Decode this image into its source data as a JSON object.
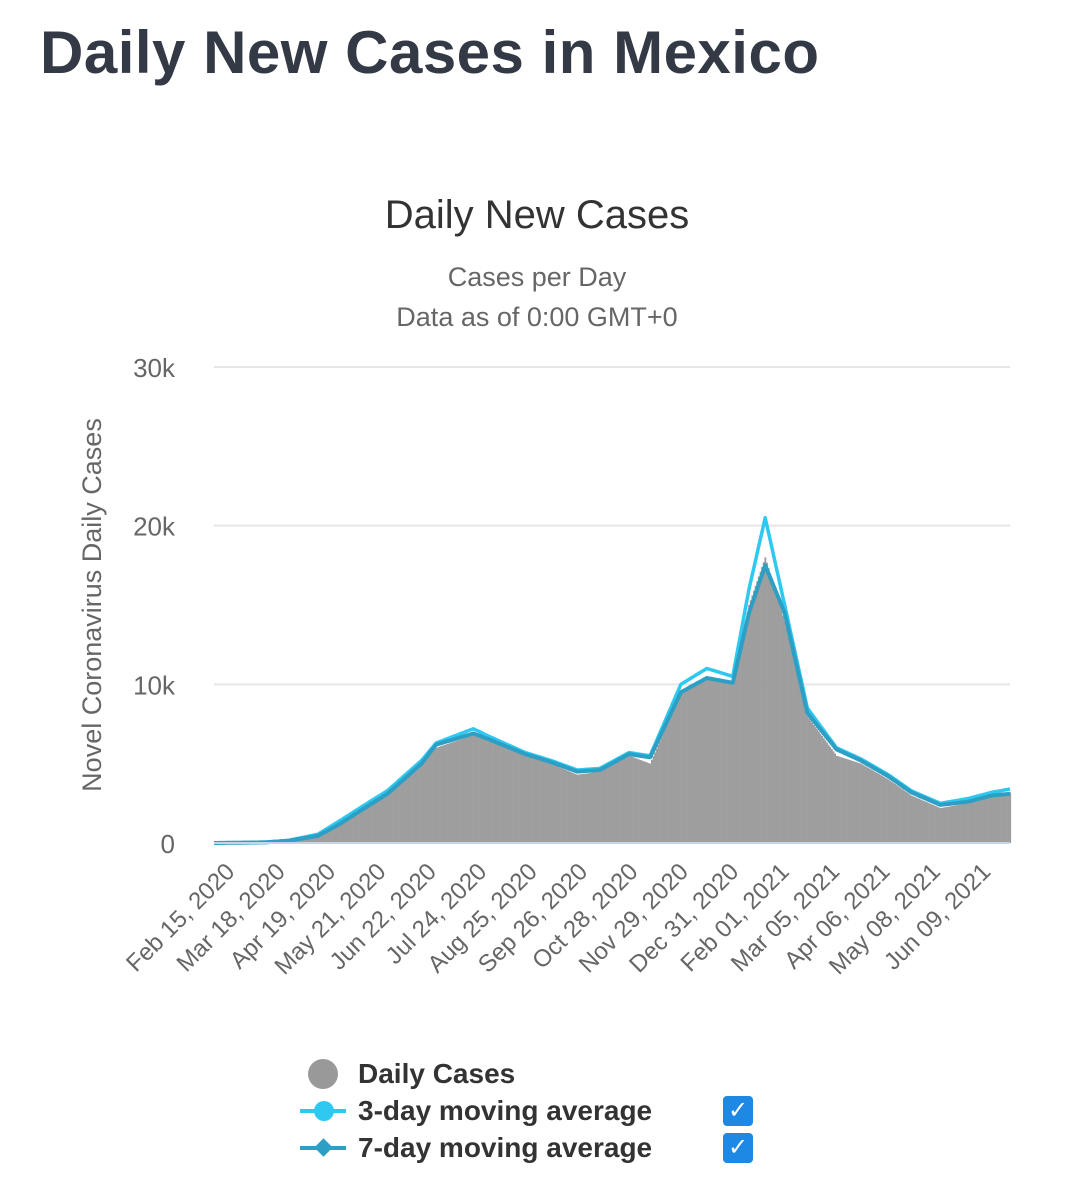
{
  "page": {
    "title": "Daily New Cases in Mexico"
  },
  "colors": {
    "daily": "#9e9e9e",
    "ma3": "#2fc8f0",
    "ma7": "#2e9fc4",
    "grid": "#e6e6e6",
    "checkbox": "#1e88e5"
  },
  "legend": {
    "items": [
      {
        "label": "Daily Cases",
        "checked": false
      },
      {
        "label": "3-day moving average",
        "checked": true
      },
      {
        "label": "7-day moving average",
        "checked": true
      }
    ]
  },
  "chart_data": {
    "type": "bar",
    "title": "Daily New Cases",
    "subtitle": [
      "Cases per Day",
      "Data as of 0:00 GMT+0"
    ],
    "ylabel": "Novel Coronavirus Daily Cases",
    "xlabel": "",
    "ylim": [
      0,
      30000
    ],
    "yticks": [
      0,
      10000,
      20000,
      30000
    ],
    "ytick_labels": [
      "0",
      "10k",
      "20k",
      "30k"
    ],
    "x_start": "2020-02-15",
    "x_end": "2021-06-20",
    "xtick_labels": [
      "Feb 15, 2020",
      "Mar 18, 2020",
      "Apr 19, 2020",
      "May 21, 2020",
      "Jun 22, 2020",
      "Jul 24, 2020",
      "Aug 25, 2020",
      "Sep 26, 2020",
      "Oct 28, 2020",
      "Nov 29, 2020",
      "Dec 31, 2020",
      "Feb 01, 2021",
      "Mar 05, 2021",
      "Apr 06, 2021",
      "May 08, 2021",
      "Jun 09, 2021"
    ],
    "grid": true,
    "legend_position": "bottom",
    "series": [
      {
        "name": "Daily Cases",
        "type": "bar",
        "points": [
          [
            "2020-02-15",
            0
          ],
          [
            "2020-03-18",
            50
          ],
          [
            "2020-04-01",
            150
          ],
          [
            "2020-04-19",
            500
          ],
          [
            "2020-05-01",
            1200
          ],
          [
            "2020-05-21",
            2500
          ],
          [
            "2020-06-01",
            3000
          ],
          [
            "2020-06-22",
            5000
          ],
          [
            "2020-07-01",
            6000
          ],
          [
            "2020-07-24",
            6800
          ],
          [
            "2020-08-01",
            6500
          ],
          [
            "2020-08-25",
            5500
          ],
          [
            "2020-09-10",
            5000
          ],
          [
            "2020-09-26",
            4300
          ],
          [
            "2020-10-10",
            4500
          ],
          [
            "2020-10-28",
            5500
          ],
          [
            "2020-11-10",
            5000
          ],
          [
            "2020-11-29",
            9500
          ],
          [
            "2020-12-15",
            10500
          ],
          [
            "2020-12-31",
            10000
          ],
          [
            "2021-01-10",
            15000
          ],
          [
            "2021-01-20",
            18000
          ],
          [
            "2021-02-01",
            14000
          ],
          [
            "2021-02-15",
            8000
          ],
          [
            "2021-03-05",
            5500
          ],
          [
            "2021-03-20",
            5000
          ],
          [
            "2021-04-06",
            4000
          ],
          [
            "2021-04-20",
            3000
          ],
          [
            "2021-05-08",
            2200
          ],
          [
            "2021-05-25",
            2500
          ],
          [
            "2021-06-09",
            3000
          ],
          [
            "2021-06-20",
            3200
          ]
        ]
      },
      {
        "name": "3-day moving average",
        "type": "line",
        "points": [
          [
            "2020-02-15",
            0
          ],
          [
            "2020-03-18",
            60
          ],
          [
            "2020-04-01",
            170
          ],
          [
            "2020-04-19",
            550
          ],
          [
            "2020-05-01",
            1300
          ],
          [
            "2020-05-21",
            2600
          ],
          [
            "2020-06-01",
            3300
          ],
          [
            "2020-06-22",
            5200
          ],
          [
            "2020-07-01",
            6300
          ],
          [
            "2020-07-24",
            7200
          ],
          [
            "2020-08-01",
            6800
          ],
          [
            "2020-08-25",
            5700
          ],
          [
            "2020-09-10",
            5200
          ],
          [
            "2020-09-26",
            4600
          ],
          [
            "2020-10-10",
            4700
          ],
          [
            "2020-10-28",
            5700
          ],
          [
            "2020-11-10",
            5500
          ],
          [
            "2020-11-29",
            10000
          ],
          [
            "2020-12-15",
            11000
          ],
          [
            "2020-12-31",
            10500
          ],
          [
            "2021-01-10",
            16000
          ],
          [
            "2021-01-20",
            20500
          ],
          [
            "2021-02-01",
            15000
          ],
          [
            "2021-02-15",
            8500
          ],
          [
            "2021-03-05",
            6000
          ],
          [
            "2021-03-20",
            5300
          ],
          [
            "2021-04-06",
            4300
          ],
          [
            "2021-04-20",
            3300
          ],
          [
            "2021-05-08",
            2500
          ],
          [
            "2021-05-25",
            2800
          ],
          [
            "2021-06-09",
            3200
          ],
          [
            "2021-06-20",
            3400
          ]
        ]
      },
      {
        "name": "7-day moving average",
        "type": "line",
        "points": [
          [
            "2020-02-15",
            0
          ],
          [
            "2020-03-18",
            40
          ],
          [
            "2020-04-01",
            140
          ],
          [
            "2020-04-19",
            450
          ],
          [
            "2020-05-01",
            1100
          ],
          [
            "2020-05-21",
            2400
          ],
          [
            "2020-06-01",
            3100
          ],
          [
            "2020-06-22",
            5000
          ],
          [
            "2020-07-01",
            6200
          ],
          [
            "2020-07-24",
            6900
          ],
          [
            "2020-08-01",
            6600
          ],
          [
            "2020-08-25",
            5600
          ],
          [
            "2020-09-10",
            5100
          ],
          [
            "2020-09-26",
            4500
          ],
          [
            "2020-10-10",
            4600
          ],
          [
            "2020-10-28",
            5600
          ],
          [
            "2020-11-10",
            5400
          ],
          [
            "2020-11-29",
            9500
          ],
          [
            "2020-12-15",
            10400
          ],
          [
            "2020-12-31",
            10100
          ],
          [
            "2021-01-10",
            14500
          ],
          [
            "2021-01-20",
            17500
          ],
          [
            "2021-02-01",
            14500
          ],
          [
            "2021-02-15",
            8200
          ],
          [
            "2021-03-05",
            5900
          ],
          [
            "2021-03-20",
            5200
          ],
          [
            "2021-04-06",
            4200
          ],
          [
            "2021-04-20",
            3200
          ],
          [
            "2021-05-08",
            2400
          ],
          [
            "2021-05-25",
            2600
          ],
          [
            "2021-06-09",
            3000
          ],
          [
            "2021-06-20",
            3100
          ]
        ]
      }
    ]
  }
}
